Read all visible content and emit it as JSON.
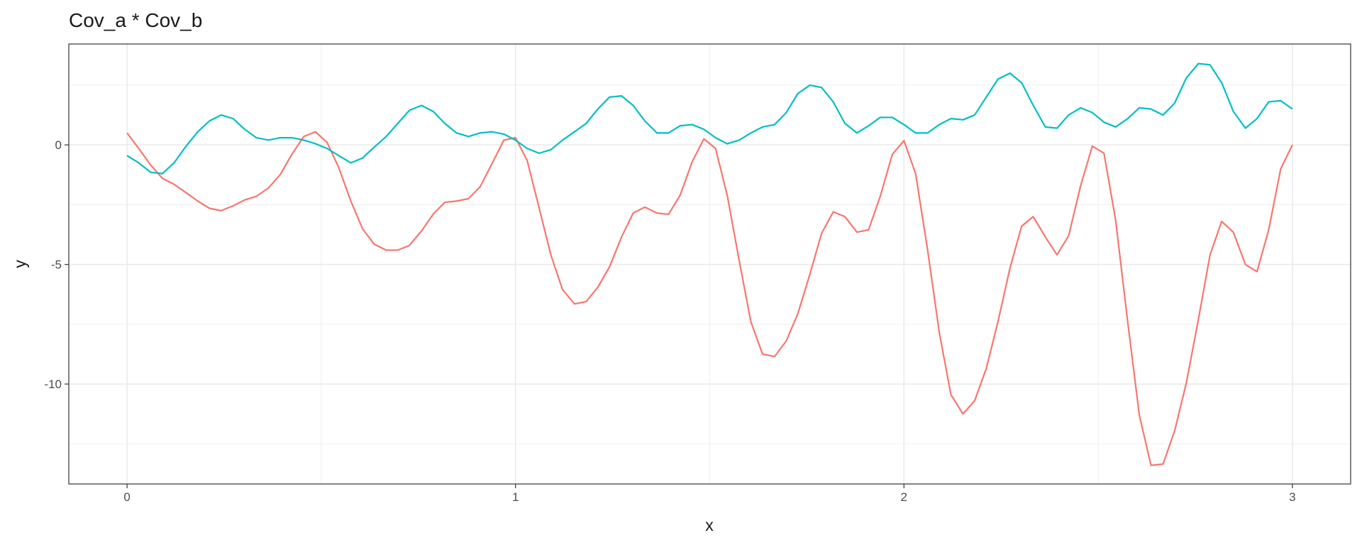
{
  "chart_data": {
    "type": "line",
    "title": "Cov_a * Cov_b",
    "x_label": "x",
    "y_label": "y",
    "x": [
      0,
      0.03,
      0.061,
      0.091,
      0.121,
      0.152,
      0.182,
      0.212,
      0.242,
      0.273,
      0.303,
      0.333,
      0.364,
      0.394,
      0.424,
      0.455,
      0.485,
      0.515,
      0.545,
      0.576,
      0.606,
      0.636,
      0.667,
      0.697,
      0.727,
      0.758,
      0.788,
      0.818,
      0.848,
      0.879,
      0.909,
      0.939,
      0.97,
      1,
      1.03,
      1.061,
      1.091,
      1.121,
      1.152,
      1.182,
      1.212,
      1.242,
      1.273,
      1.303,
      1.333,
      1.364,
      1.394,
      1.424,
      1.455,
      1.485,
      1.515,
      1.545,
      1.576,
      1.606,
      1.636,
      1.667,
      1.697,
      1.727,
      1.758,
      1.788,
      1.818,
      1.848,
      1.879,
      1.909,
      1.939,
      1.97,
      2,
      2.03,
      2.061,
      2.091,
      2.121,
      2.152,
      2.182,
      2.212,
      2.242,
      2.273,
      2.303,
      2.333,
      2.364,
      2.394,
      2.424,
      2.455,
      2.485,
      2.515,
      2.545,
      2.576,
      2.606,
      2.636,
      2.667,
      2.697,
      2.727,
      2.758,
      2.788,
      2.818,
      2.848,
      2.879,
      2.909,
      2.939,
      2.97,
      3
    ],
    "series": [
      {
        "color": "#F8766D",
        "values": [
          0.5,
          -0.15,
          -0.85,
          -1.4,
          -1.65,
          -2.0,
          -2.35,
          -2.65,
          -2.75,
          -2.55,
          -2.3,
          -2.15,
          -1.8,
          -1.25,
          -0.4,
          0.35,
          0.55,
          0.1,
          -0.95,
          -2.35,
          -3.5,
          -4.15,
          -4.4,
          -4.4,
          -4.2,
          -3.6,
          -2.9,
          -2.4,
          -2.35,
          -2.25,
          -1.75,
          -0.8,
          0.2,
          0.3,
          -0.65,
          -2.65,
          -4.6,
          -6.05,
          -6.65,
          -6.55,
          -5.95,
          -5.1,
          -3.85,
          -2.85,
          -2.6,
          -2.85,
          -2.9,
          -2.1,
          -0.7,
          0.25,
          -0.15,
          -2.1,
          -4.85,
          -7.4,
          -8.75,
          -8.85,
          -8.2,
          -7.05,
          -5.4,
          -3.7,
          -2.8,
          -3.0,
          -3.65,
          -3.55,
          -2.15,
          -0.4,
          0.18,
          -1.2,
          -4.4,
          -7.85,
          -10.45,
          -11.25,
          -10.7,
          -9.35,
          -7.4,
          -5.15,
          -3.4,
          -3.0,
          -3.85,
          -4.6,
          -3.8,
          -1.7,
          -0.05,
          -0.35,
          -3.15,
          -7.4,
          -11.3,
          -13.4,
          -13.35,
          -11.95,
          -9.95,
          -7.3,
          -4.6,
          -3.2,
          -3.65,
          -5.0,
          -5.3,
          -3.55,
          -1.0,
          0.0
        ]
      },
      {
        "color": "#00BFC4",
        "values": [
          -0.45,
          -0.75,
          -1.15,
          -1.2,
          -0.75,
          -0.05,
          0.55,
          1.0,
          1.25,
          1.1,
          0.65,
          0.3,
          0.2,
          0.3,
          0.3,
          0.2,
          0.05,
          -0.15,
          -0.45,
          -0.75,
          -0.55,
          -0.1,
          0.35,
          0.9,
          1.45,
          1.65,
          1.4,
          0.9,
          0.5,
          0.35,
          0.5,
          0.55,
          0.45,
          0.2,
          -0.15,
          -0.35,
          -0.2,
          0.2,
          0.55,
          0.9,
          1.5,
          2.0,
          2.05,
          1.65,
          1.0,
          0.5,
          0.5,
          0.8,
          0.85,
          0.65,
          0.3,
          0.05,
          0.2,
          0.5,
          0.75,
          0.85,
          1.35,
          2.15,
          2.5,
          2.4,
          1.8,
          0.9,
          0.5,
          0.8,
          1.15,
          1.15,
          0.85,
          0.5,
          0.5,
          0.85,
          1.1,
          1.05,
          1.25,
          2.0,
          2.75,
          3.0,
          2.6,
          1.65,
          0.75,
          0.7,
          1.25,
          1.55,
          1.35,
          0.95,
          0.75,
          1.1,
          1.55,
          1.5,
          1.25,
          1.75,
          2.8,
          3.4,
          3.35,
          2.6,
          1.4,
          0.7,
          1.1,
          1.8,
          1.85,
          1.5
        ]
      }
    ],
    "xlim": [
      -0.15,
      3.15
    ],
    "ylim": [
      -14.18,
      4.22
    ],
    "xticks": [
      0,
      1,
      2,
      3
    ],
    "yticks": [
      -10,
      -5,
      0
    ],
    "minor_xgrid": [
      0.5,
      1.5,
      2.5
    ],
    "minor_ygrid": [
      -12.5,
      -7.5,
      -2.5,
      2.5
    ],
    "grid": true
  }
}
